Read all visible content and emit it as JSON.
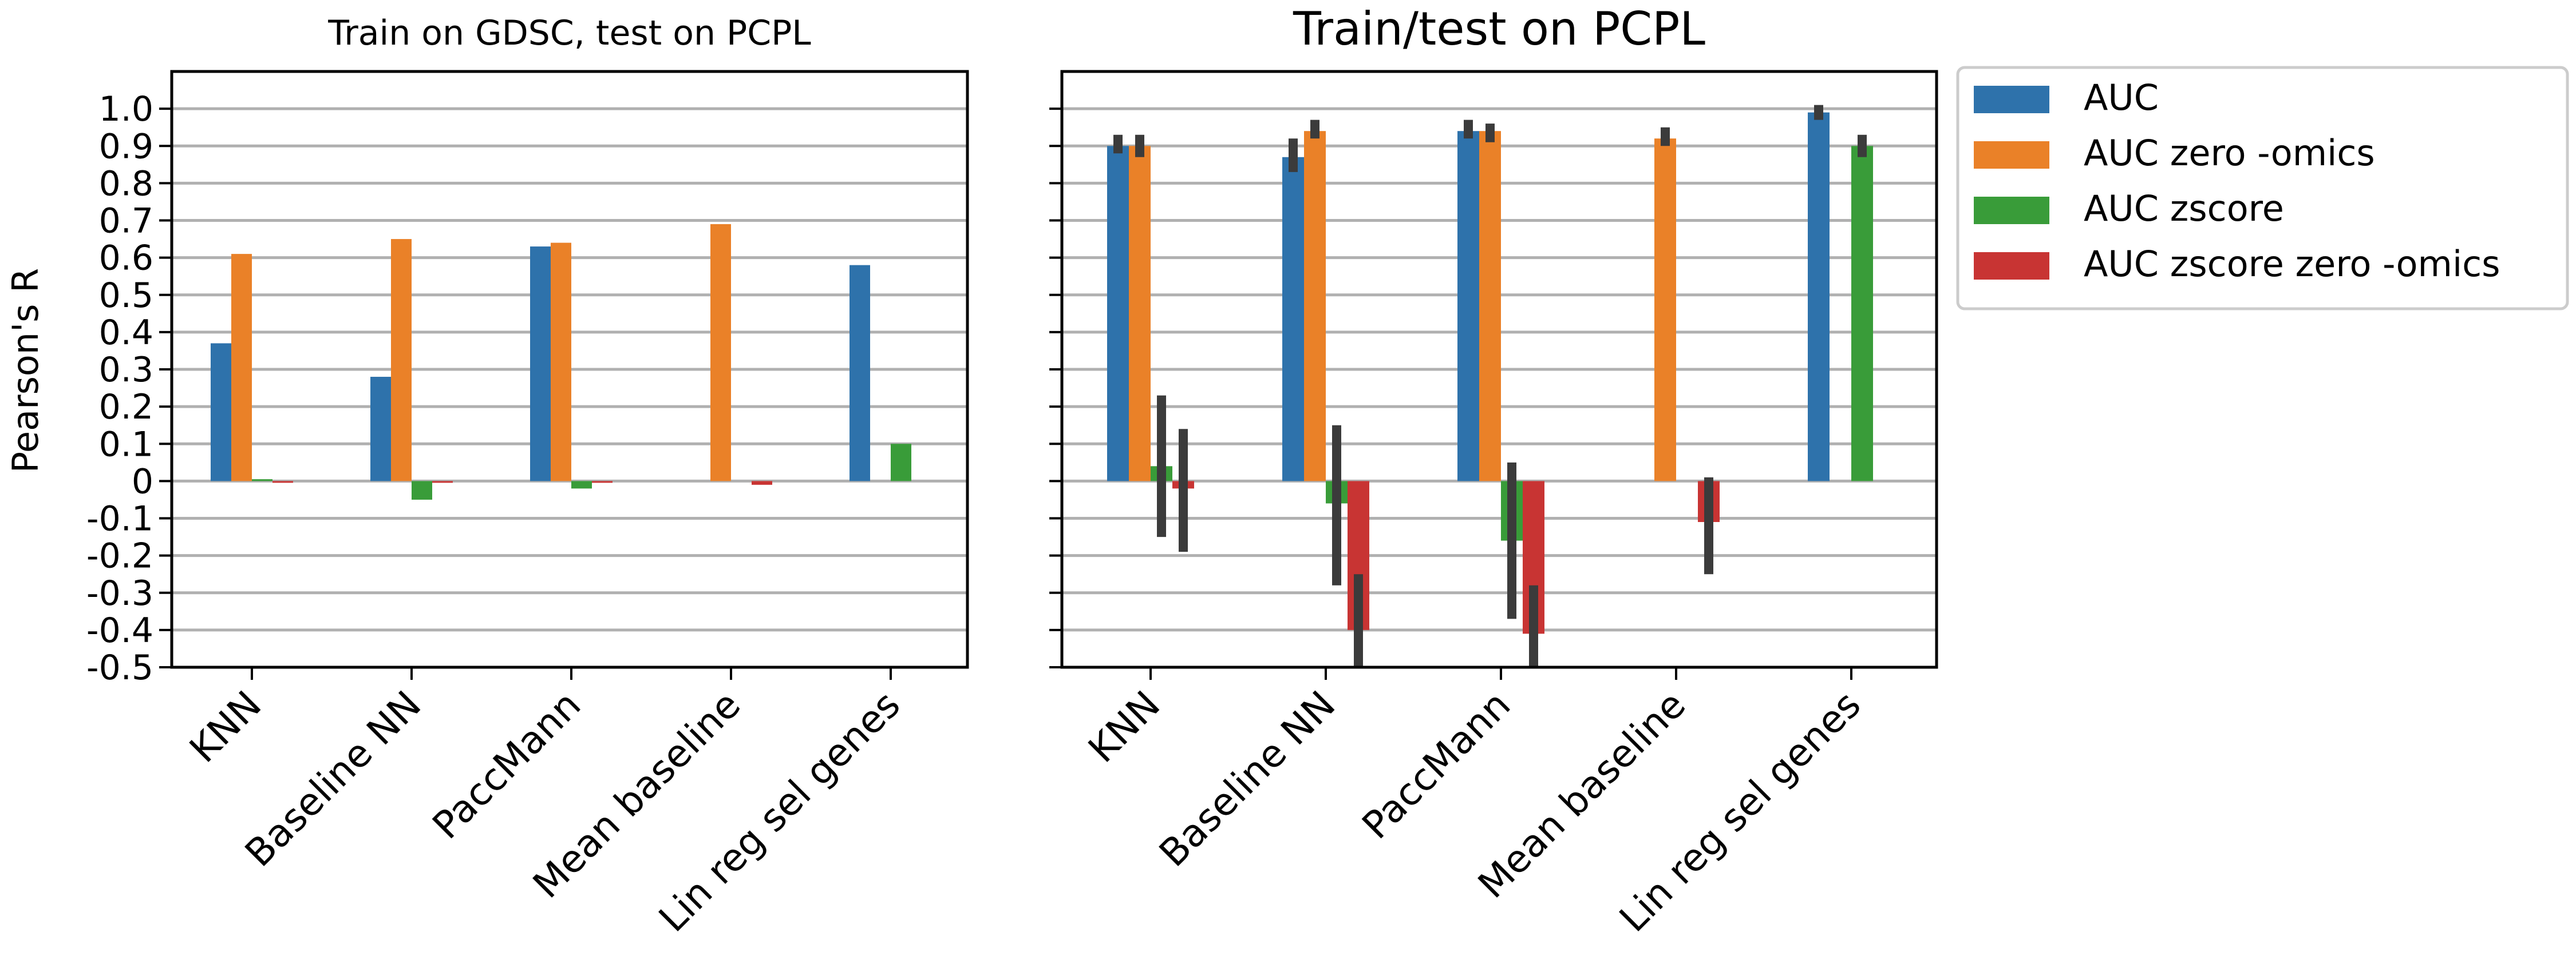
{
  "chart_data": [
    {
      "type": "bar",
      "title": "Train on GDSC, test on PCPL",
      "ylabel": "Pearson's R",
      "ylim": [
        -0.5,
        1.1
      ],
      "yticks": [
        "1.0",
        "0.9",
        "0.8",
        "0.7",
        "0.6",
        "0.5",
        "0.4",
        "0.3",
        "0.2",
        "0.1",
        "0",
        "-0.1",
        "-0.2",
        "-0.3",
        "-0.4",
        "-0.5"
      ],
      "grid": true,
      "categories": [
        "KNN",
        "Baseline NN",
        "PaccMann",
        "Mean baseline",
        "Lin reg sel genes"
      ],
      "series": [
        {
          "name": "AUC",
          "color": "#2e72ab",
          "values": [
            0.37,
            0.28,
            0.63,
            null,
            0.58
          ]
        },
        {
          "name": "AUC zero -omics",
          "color": "#ea8128",
          "values": [
            0.61,
            0.65,
            0.64,
            0.69,
            null
          ]
        },
        {
          "name": "AUC zscore",
          "color": "#399c39",
          "values": [
            0.005,
            -0.05,
            -0.02,
            null,
            0.1
          ]
        },
        {
          "name": "AUC zscore zero -omics",
          "color": "#c83433",
          "values": [
            0.0,
            0.0,
            0.0,
            -0.01,
            null
          ]
        }
      ]
    },
    {
      "type": "bar",
      "title": "Train/test on PCPL",
      "ylim": [
        -0.5,
        1.1
      ],
      "grid": true,
      "legend_position": "outside-right",
      "categories": [
        "KNN",
        "Baseline NN",
        "PaccMann",
        "Mean baseline",
        "Lin reg sel genes"
      ],
      "series": [
        {
          "name": "AUC",
          "color": "#2e72ab",
          "values": [
            0.9,
            0.87,
            0.94,
            null,
            0.99
          ],
          "error": [
            [
              0.88,
              0.93
            ],
            [
              0.83,
              0.92
            ],
            [
              0.92,
              0.97
            ],
            null,
            [
              0.97,
              1.01
            ]
          ]
        },
        {
          "name": "AUC zero -omics",
          "color": "#ea8128",
          "values": [
            0.9,
            0.94,
            0.94,
            0.92,
            null
          ],
          "error": [
            [
              0.87,
              0.93
            ],
            [
              0.92,
              0.97
            ],
            [
              0.91,
              0.96
            ],
            [
              0.9,
              0.95
            ],
            null
          ]
        },
        {
          "name": "AUC zscore",
          "color": "#399c39",
          "values": [
            0.04,
            -0.06,
            -0.16,
            null,
            0.9
          ],
          "error": [
            [
              -0.15,
              0.23
            ],
            [
              -0.28,
              0.15
            ],
            [
              -0.37,
              0.05
            ],
            null,
            [
              0.87,
              0.93
            ]
          ]
        },
        {
          "name": "AUC zscore zero -omics",
          "color": "#c83433",
          "values": [
            -0.02,
            -0.4,
            -0.41,
            -0.11,
            null
          ],
          "error": [
            [
              -0.19,
              0.14
            ],
            [
              -0.55,
              -0.25
            ],
            [
              -0.55,
              -0.28
            ],
            [
              -0.25,
              0.01
            ],
            null
          ]
        }
      ]
    }
  ],
  "legend": [
    {
      "label": "AUC",
      "color": "#2e72ab"
    },
    {
      "label": "AUC zero -omics",
      "color": "#ea8128"
    },
    {
      "label": "AUC zscore",
      "color": "#399c39"
    },
    {
      "label": "AUC zscore zero -omics",
      "color": "#c83433"
    }
  ]
}
